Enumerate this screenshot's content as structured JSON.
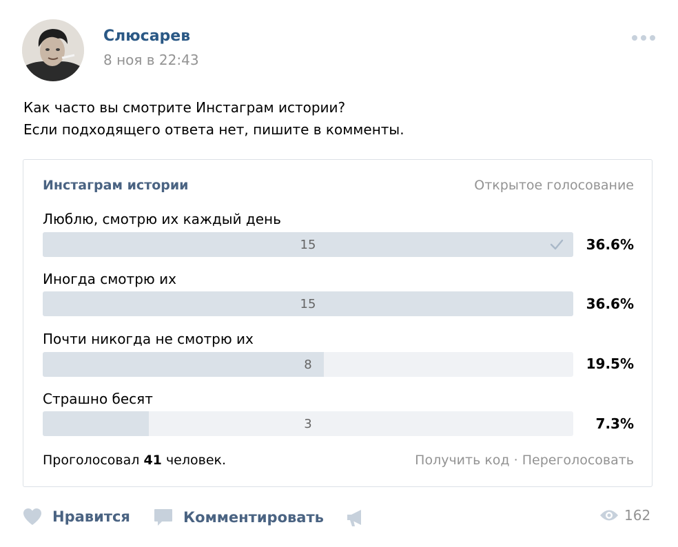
{
  "post": {
    "author": "Слюсарев",
    "date": "8 ноя в 22:43",
    "text_lines": [
      "Как часто вы смотрите Инстаграм истории?",
      "Если подходящего ответа нет, пишите в комменты."
    ]
  },
  "poll": {
    "title": "Инстаграм истории",
    "type": "Открытое голосование",
    "options": [
      {
        "label": "Люблю, смотрю их каждый день",
        "count": "15",
        "percent": "36.6%",
        "share": 1.0,
        "voted": true
      },
      {
        "label": "Иногда смотрю их",
        "count": "15",
        "percent": "36.6%",
        "share": 1.0,
        "voted": false
      },
      {
        "label": "Почти никогда не смотрю их",
        "count": "8",
        "percent": "19.5%",
        "share": 0.53,
        "voted": false
      },
      {
        "label": "Страшно бесят",
        "count": "3",
        "percent": "7.3%",
        "share": 0.2,
        "voted": false
      }
    ],
    "footer": {
      "prefix": "Проголосовал",
      "total": "41",
      "suffix": "человек."
    },
    "links": {
      "get_code": "Получить код",
      "separator": "·",
      "revote": "Переголосовать"
    }
  },
  "actions": {
    "like": "Нравится",
    "comment": "Комментировать",
    "views": "162"
  },
  "icons": {
    "more": "more-dots-icon",
    "check": "checkmark-icon",
    "like": "heart-icon",
    "comment": "comment-bubble-icon",
    "share": "megaphone-icon",
    "views": "eye-icon"
  },
  "colors": {
    "link": "#2a5885",
    "poll_title": "#4a6382",
    "muted": "#939393",
    "bar_track": "#f0f2f5",
    "bar_fill": "#dae1e8",
    "icon": "#c7d1dc"
  }
}
